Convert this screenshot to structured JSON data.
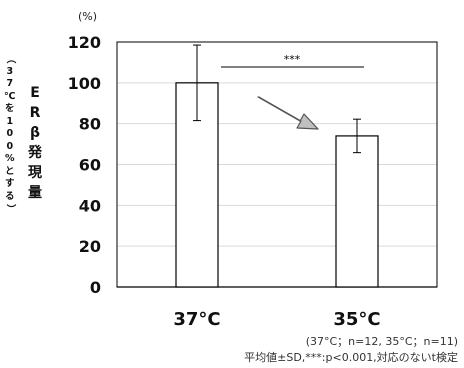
{
  "chart_data": {
    "type": "bar",
    "unit_label": "(%)",
    "ylabel_main": "ERβ発現量",
    "ylabel_note": "（37℃を100%とする）",
    "categories": [
      "37°C",
      "35°C"
    ],
    "values": [
      100,
      74
    ],
    "error": [
      18.5,
      8.2
    ],
    "ylim": [
      0,
      120
    ],
    "yticks": [
      0,
      20,
      40,
      60,
      80,
      100,
      120
    ],
    "grid": true,
    "significance": "***",
    "colors": {
      "bar_fill": "#ffffff",
      "bar_stroke": "#000000",
      "grid": "#d9d9d9",
      "arrow": "#444444"
    }
  },
  "footnotes": {
    "line1": "(37°C；n=12, 35°C；n=11)",
    "line2": "平均値±SD,***:p<0.001,対応のないt検定"
  }
}
